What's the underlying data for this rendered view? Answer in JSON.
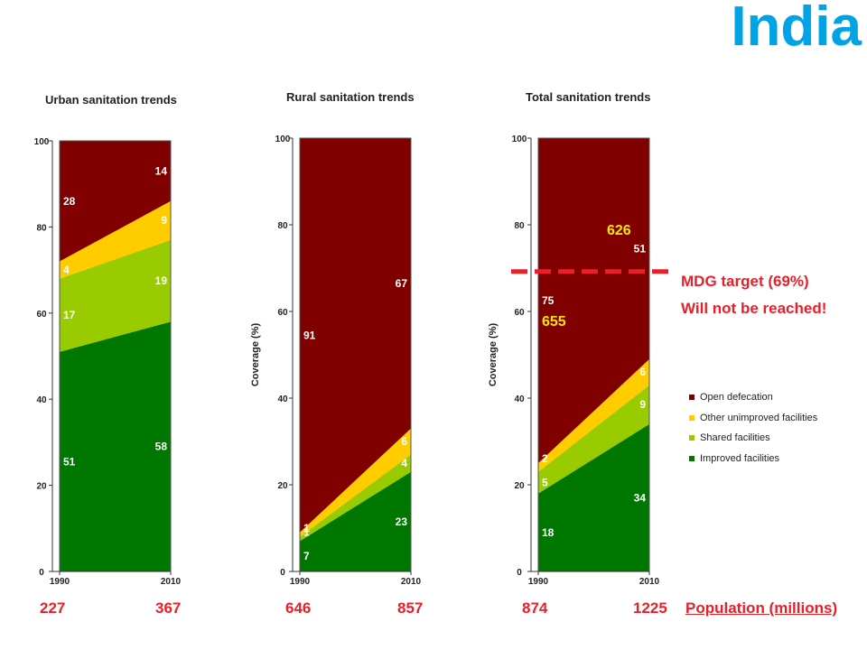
{
  "page_title": "India",
  "colors": {
    "open_defecation": "#800000",
    "other_unimproved": "#ffcc00",
    "shared": "#99cc00",
    "improved": "#007700",
    "title_blue": "#00a3e6",
    "highlight_red": "#e8202a",
    "highlight_yellow": "#ffe600"
  },
  "legend": [
    {
      "label": "Open defecation",
      "color": "#800000"
    },
    {
      "label": "Other unimproved facilities",
      "color": "#ffcc00"
    },
    {
      "label": "Shared facilities",
      "color": "#99cc00"
    },
    {
      "label": "Improved facilities",
      "color": "#007700"
    }
  ],
  "mdg": {
    "line1": "MDG target (69%)",
    "line2": "Will not be reached!",
    "target_value": 69
  },
  "population": {
    "label": "Population (millions)",
    "urban": [
      "227",
      "367"
    ],
    "rural": [
      "646",
      "857"
    ],
    "total": [
      "874",
      "1225"
    ]
  },
  "callouts": {
    "top": "626",
    "bottom": "655"
  },
  "chart_data": [
    {
      "type": "area",
      "title": "Urban sanitation trends",
      "ylabel": "",
      "x": [
        "1990",
        "2010"
      ],
      "ylim": [
        0,
        100
      ],
      "yticks": [
        "0",
        "20",
        "40",
        "60",
        "80",
        "100"
      ],
      "stacked": true,
      "series": [
        {
          "name": "Improved facilities",
          "values": [
            51,
            58
          ],
          "labels": [
            "51",
            "58"
          ]
        },
        {
          "name": "Shared facilities",
          "values": [
            17,
            19
          ],
          "labels": [
            "17",
            "19"
          ]
        },
        {
          "name": "Other unimproved facilities",
          "values": [
            4,
            9
          ],
          "labels": [
            "4",
            "9"
          ]
        },
        {
          "name": "Open defecation",
          "values": [
            28,
            14
          ],
          "labels": [
            "28",
            "14"
          ]
        }
      ]
    },
    {
      "type": "area",
      "title": "Rural sanitation trends",
      "ylabel": "Coverage (%)",
      "x": [
        "1990",
        "2010"
      ],
      "ylim": [
        0,
        100
      ],
      "yticks": [
        "0",
        "20",
        "40",
        "60",
        "80",
        "100"
      ],
      "stacked": true,
      "series": [
        {
          "name": "Improved facilities",
          "values": [
            7,
            23
          ],
          "labels": [
            "7",
            "23"
          ]
        },
        {
          "name": "Shared facilities",
          "values": [
            1,
            4
          ],
          "labels": [
            "1",
            "4"
          ]
        },
        {
          "name": "Other unimproved facilities",
          "values": [
            1,
            6
          ],
          "labels": [
            "1",
            "6"
          ]
        },
        {
          "name": "Open defecation",
          "values": [
            91,
            67
          ],
          "labels": [
            "91",
            "67"
          ]
        }
      ]
    },
    {
      "type": "area",
      "title": "Total sanitation trends",
      "ylabel": "Coverage (%)",
      "x": [
        "1990",
        "2010"
      ],
      "ylim": [
        0,
        100
      ],
      "yticks": [
        "0",
        "20",
        "40",
        "60",
        "80",
        "100"
      ],
      "stacked": true,
      "series": [
        {
          "name": "Improved facilities",
          "values": [
            18,
            34
          ],
          "labels": [
            "18",
            "34"
          ]
        },
        {
          "name": "Shared facilities",
          "values": [
            5,
            9
          ],
          "labels": [
            "5",
            "9"
          ]
        },
        {
          "name": "Other unimproved facilities",
          "values": [
            2,
            6
          ],
          "labels": [
            "2",
            "6"
          ]
        },
        {
          "name": "Open defecation",
          "values": [
            75,
            51
          ],
          "labels": [
            "75",
            "51"
          ]
        }
      ]
    }
  ]
}
